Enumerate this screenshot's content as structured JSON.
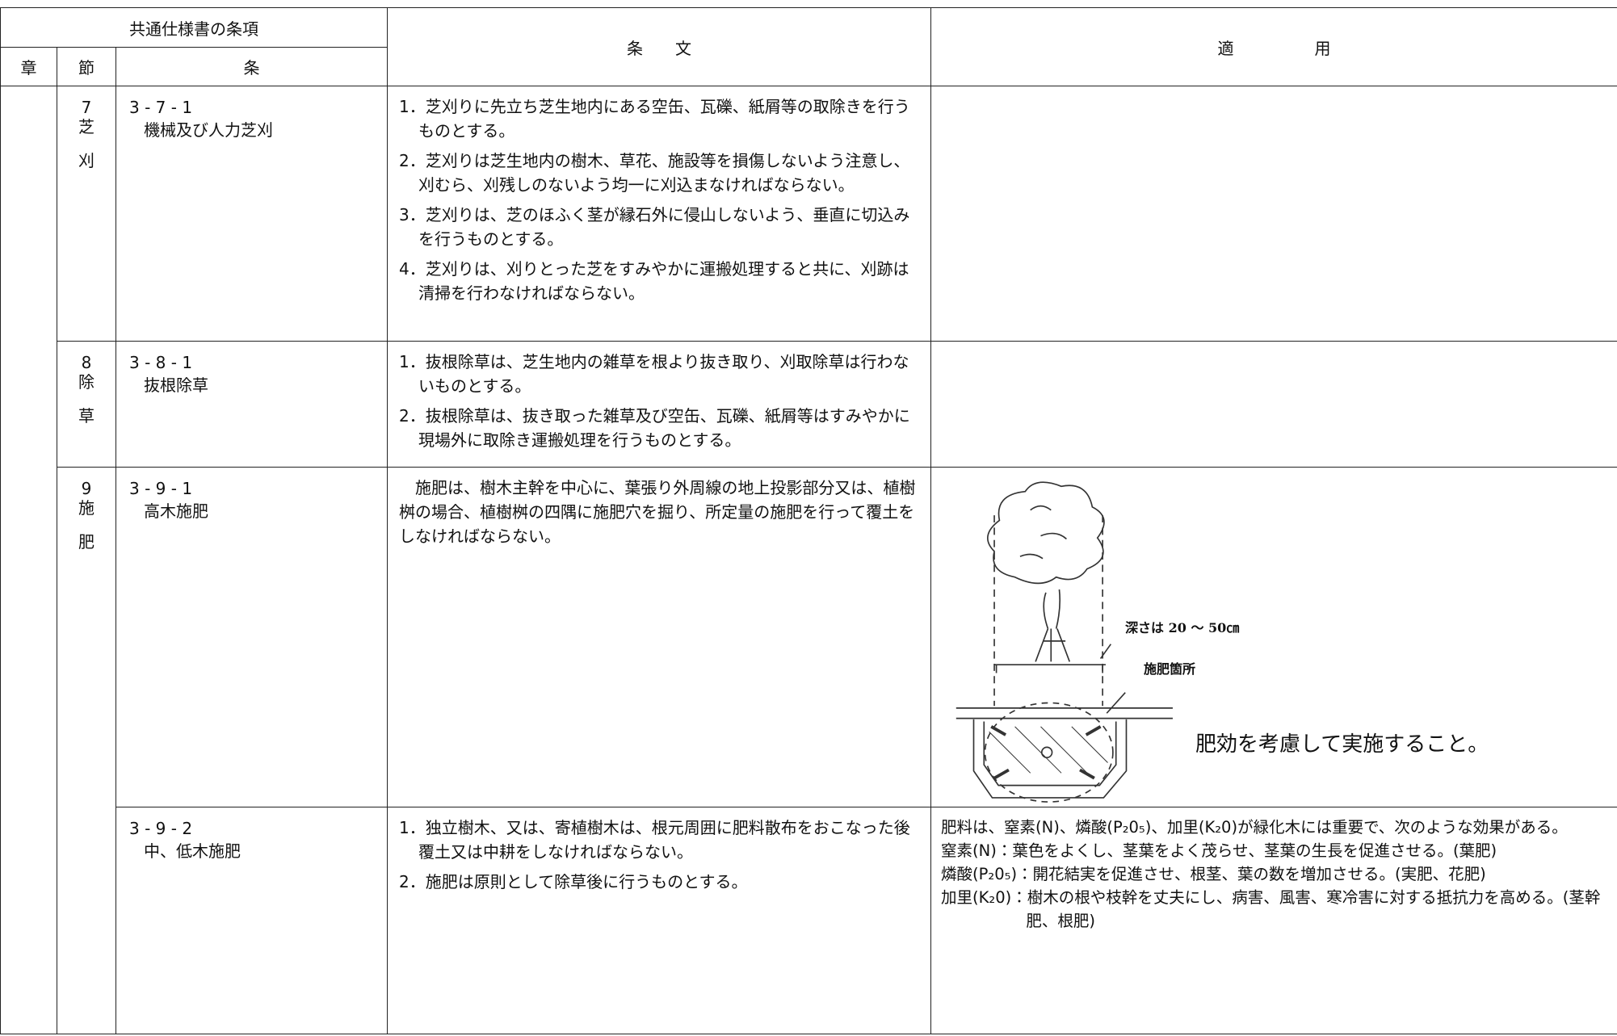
{
  "header": {
    "group": "共通仕様書の条項",
    "chapter": "章",
    "section": "節",
    "clause": "条",
    "text": "条　　文",
    "application": "適　　　　　用"
  },
  "sections": [
    {
      "number": "7",
      "name": [
        "芝",
        "刈"
      ],
      "clauses": [
        {
          "number": "3 - 7 - 1",
          "title": "機械及び人力芝刈",
          "items": [
            "1．芝刈りに先立ち芝生地内にある空缶、瓦礫、紙屑等の取除きを行うものとする。",
            "2．芝刈りは芝生地内の樹木、草花、施設等を損傷しないよう注意し、刈むら、刈残しのないよう均一に刈込まなければならない。",
            "3．芝刈りは、芝のほふく茎が縁石外に侵山しないよう、垂直に切込みを行うものとする。",
            "4．芝刈りは、刈りとった芝をすみやかに運搬処理すると共に、刈跡は清掃を行わなければならない。"
          ]
        }
      ]
    },
    {
      "number": "8",
      "name": [
        "除",
        "草"
      ],
      "clauses": [
        {
          "number": "3 - 8 - 1",
          "title": "抜根除草",
          "items": [
            "1．抜根除草は、芝生地内の雑草を根より抜き取り、刈取除草は行わないものとする。",
            "2．抜根除草は、抜き取った雑草及び空缶、瓦礫、紙屑等はすみやかに現場外に取除き運搬処理を行うものとする。"
          ]
        }
      ]
    },
    {
      "number": "9",
      "name": [
        "施",
        "肥"
      ],
      "clauses": [
        {
          "number": "3 - 9 - 1",
          "title": "高木施肥",
          "paragraph": "施肥は、樹木主幹を中心に、葉張り外周線の地上投影部分又は、植樹桝の場合、植樹桝の四隅に施肥穴を掘り、所定量の施肥を行って覆土をしなければならない。",
          "figure": {
            "depth_label": "深さは 20 ～ 50㎝",
            "spot_label": "施肥箇所",
            "caption": "肥効を考慮して実施すること。"
          }
        },
        {
          "number": "3 - 9 - 2",
          "title": "中、低木施肥",
          "items": [
            "1．独立樹木、又は、寄植樹木は、根元周囲に肥料散布をおこなった後覆土又は中耕をしなければならない。",
            "2．施肥は原則として除草後に行うものとする。"
          ],
          "application": [
            "肥料は、窒素(N)、燐酸(P₂0₅)、加里(K₂0)が緑化木には重要で、次のような効果がある。",
            "窒素(N)：葉色をよくし、茎葉をよく茂らせ、茎葉の生長を促進させる。(葉肥)",
            "燐酸(P₂0₅)：開花結実を促進させ、根茎、葉の数を増加させる。(実肥、花肥)",
            "加里(K₂0)：樹木の根や枝幹を丈夫にし、病害、風害、寒冷害に対する抵抗力を高める。(茎幹肥、根肥)"
          ]
        }
      ]
    }
  ]
}
